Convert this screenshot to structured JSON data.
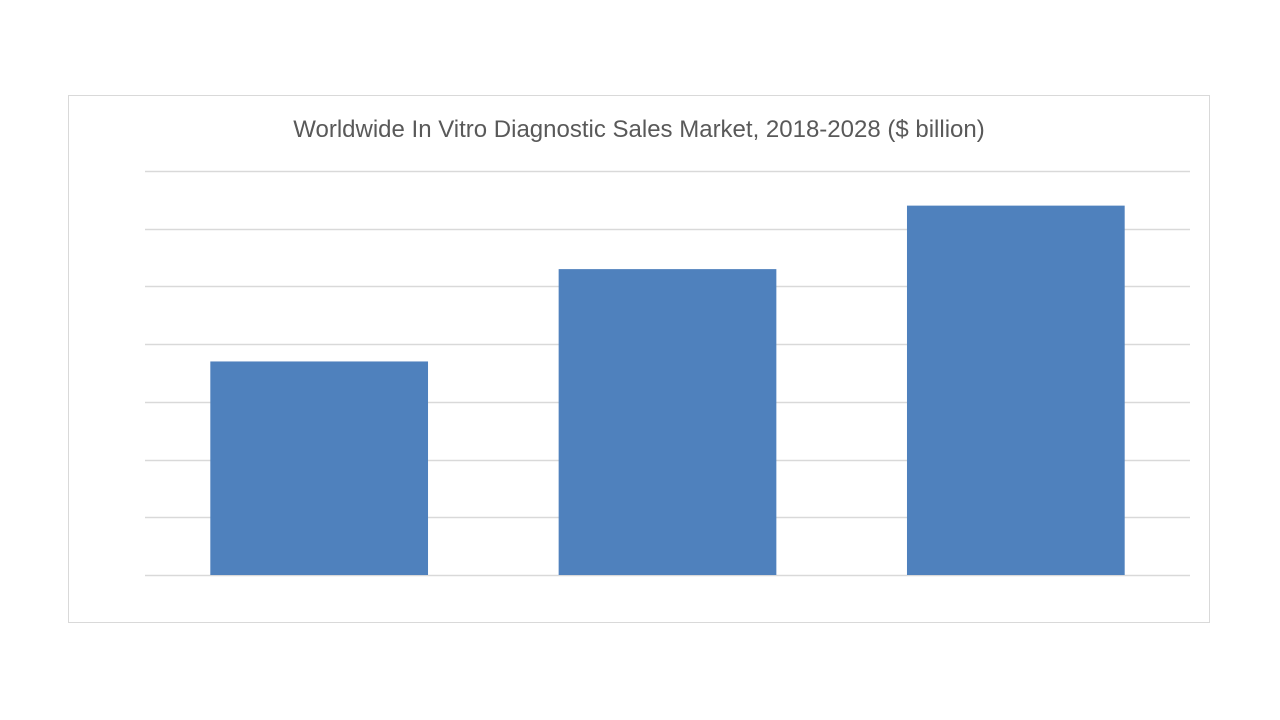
{
  "chart_data": {
    "type": "bar",
    "title": "Worldwide In Vitro Diagnostic Sales Market, 2018-2028 ($ billion)",
    "categories": [
      "",
      "",
      ""
    ],
    "values": [
      37,
      53,
      64
    ],
    "ylim": [
      0,
      70
    ],
    "grid": true,
    "legend": "none",
    "bar_color": "#4f81bd",
    "grid_color": "#d9d9d9"
  }
}
